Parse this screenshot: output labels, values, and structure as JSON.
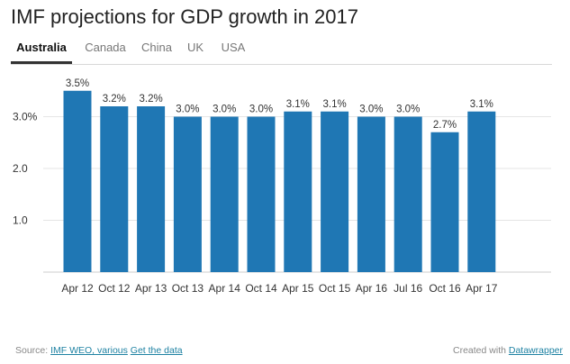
{
  "title": "IMF projections for GDP growth in 2017",
  "tabs": [
    {
      "label": "Australia",
      "active": true
    },
    {
      "label": "Canada",
      "active": false
    },
    {
      "label": "China",
      "active": false
    },
    {
      "label": "UK",
      "active": false
    },
    {
      "label": "USA",
      "active": false
    }
  ],
  "colors": {
    "bar": "#1f77b4",
    "grid": "#e5e5e5",
    "link": "#1d81a2"
  },
  "chart_data": {
    "type": "bar",
    "categories": [
      "Apr 12",
      "Oct 12",
      "Apr 13",
      "Oct 13",
      "Apr 14",
      "Oct 14",
      "Apr 15",
      "Oct 15",
      "Apr 16",
      "Jul 16",
      "Oct 16",
      "Apr 17"
    ],
    "values": [
      3.5,
      3.2,
      3.2,
      3.0,
      3.0,
      3.0,
      3.1,
      3.1,
      3.0,
      3.0,
      2.7,
      3.1
    ],
    "data_labels": [
      "3.5%",
      "3.2%",
      "3.2%",
      "3.0%",
      "3.0%",
      "3.0%",
      "3.1%",
      "3.1%",
      "3.0%",
      "3.0%",
      "2.7%",
      "3.1%"
    ],
    "yticks": [
      1.0,
      2.0,
      3.0
    ],
    "ytick_labels": [
      "1.0",
      "2.0",
      "3.0%"
    ],
    "ylim": [
      0,
      3.6
    ],
    "grid": true,
    "title": "IMF projections for GDP growth in 2017",
    "xlabel": "",
    "ylabel": ""
  },
  "footer": {
    "source_prefix": "Source:",
    "source_link": "IMF WEO, various",
    "data_link": "Get the data",
    "created_prefix": "Created with",
    "created_link": "Datawrapper"
  }
}
